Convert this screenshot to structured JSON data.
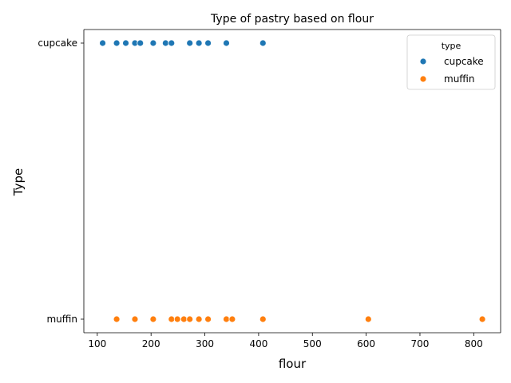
{
  "chart_data": {
    "type": "scatter",
    "title": "Type of pastry based on flour",
    "xlabel": "flour",
    "ylabel": "Type",
    "xlim": [
      75,
      850
    ],
    "xticks": [
      100,
      200,
      300,
      400,
      500,
      600,
      700,
      800
    ],
    "categories": [
      "cupcake",
      "muffin"
    ],
    "legend": {
      "title": "type",
      "position": "top-right"
    },
    "grid": false,
    "series": [
      {
        "name": "cupcake",
        "color": "#1f77b4",
        "category": "cupcake",
        "x": [
          110,
          136,
          153,
          170,
          180,
          204,
          227,
          238,
          272,
          289,
          306,
          340,
          408
        ]
      },
      {
        "name": "muffin",
        "color": "#ff7f0e",
        "category": "muffin",
        "x": [
          136,
          170,
          204,
          238,
          249,
          261,
          272,
          289,
          306,
          340,
          351,
          408,
          604,
          816
        ]
      }
    ]
  }
}
